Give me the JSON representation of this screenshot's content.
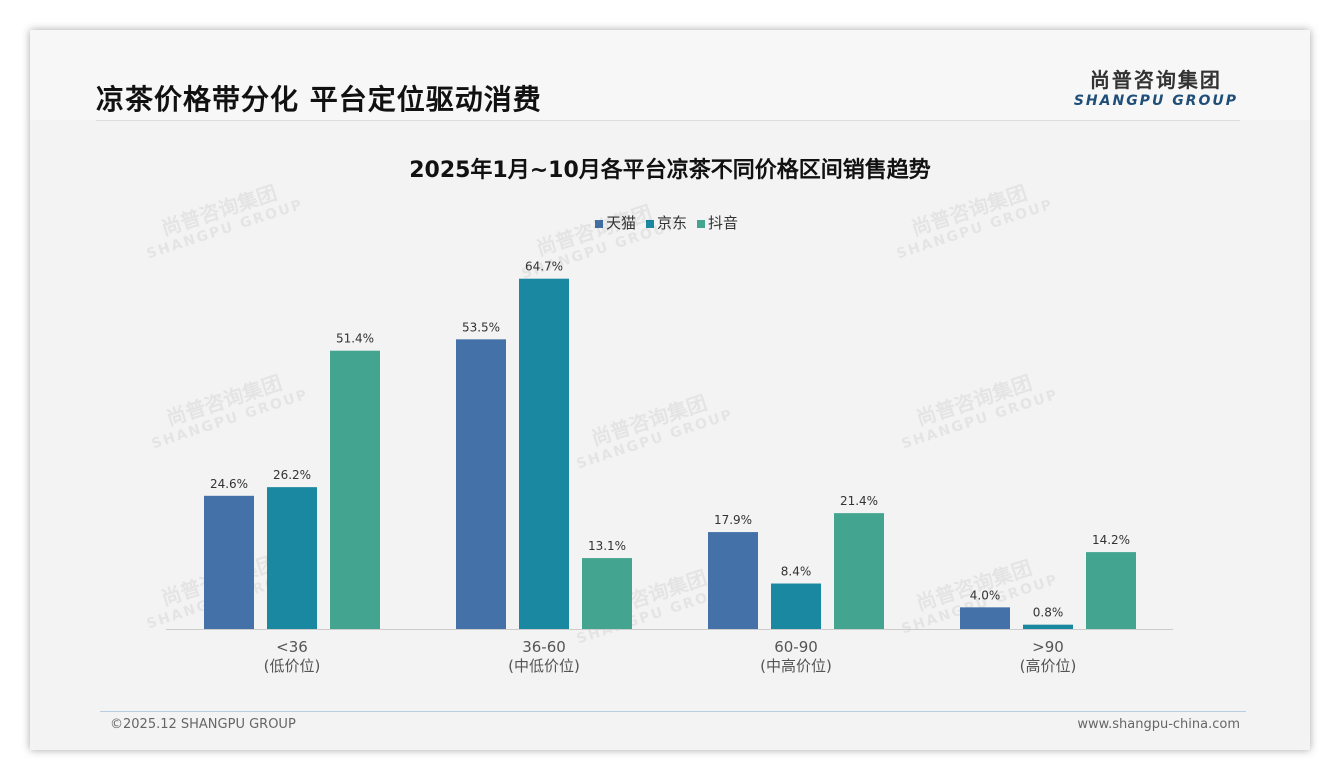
{
  "header": {
    "title": "凉茶价格带分化 平台定位驱动消费",
    "logo_cn": "尚普咨询集团",
    "logo_en": "SHANGPU GROUP"
  },
  "footer": {
    "copyright": "©2025.12 SHANGPU GROUP",
    "website": "www.shangpu-china.com"
  },
  "watermark": {
    "cn": "尚普咨询集团",
    "en": "SHANGPU GROUP"
  },
  "chart_data": {
    "type": "bar",
    "title": "2025年1月~10月各平台凉茶不同价格区间销售趋势",
    "categories": [
      "<36",
      "36-60",
      "60-90",
      ">90"
    ],
    "category_sublabels": [
      "(低价位)",
      "(中低价位)",
      "(中高价位)",
      "(高价位)"
    ],
    "series": [
      {
        "name": "天猫",
        "color": "#4472a8",
        "values": [
          24.6,
          53.5,
          17.9,
          4.0
        ]
      },
      {
        "name": "京东",
        "color": "#1a88a0",
        "values": [
          26.2,
          64.7,
          8.4,
          0.8
        ]
      },
      {
        "name": "抖音",
        "color": "#43a58f",
        "values": [
          51.4,
          13.1,
          21.4,
          14.2
        ]
      }
    ],
    "unit": "%",
    "ylim": [
      0,
      70
    ],
    "legend": "top-center",
    "grid": false
  }
}
